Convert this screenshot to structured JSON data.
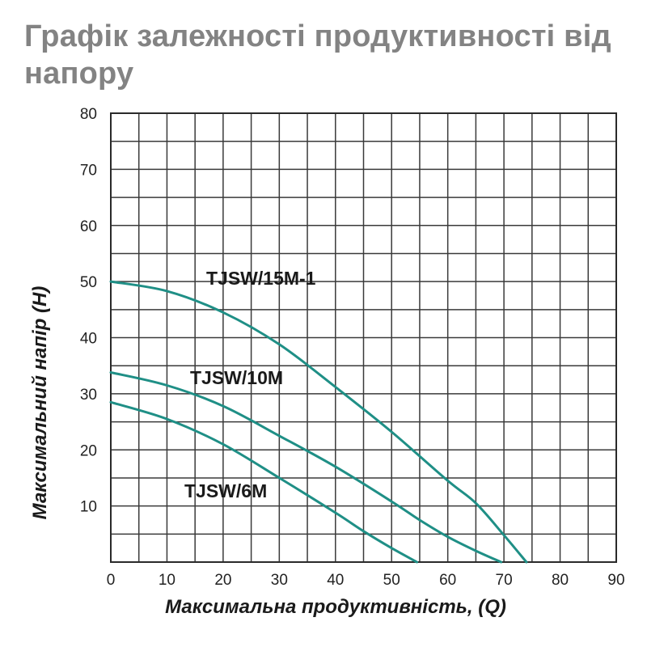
{
  "chart_data": {
    "type": "line",
    "title": "Графік залежності продуктивності від напору",
    "xlabel": "Максимальна продуктивність, (Q)",
    "ylabel": "Максимальний напір (H)",
    "xlim": [
      0,
      90
    ],
    "ylim": [
      0,
      80
    ],
    "x_ticks": [
      "0",
      "10",
      "20",
      "30",
      "40",
      "50",
      "60",
      "70",
      "80",
      "90"
    ],
    "y_ticks": [
      "10",
      "20",
      "30",
      "40",
      "50",
      "60",
      "70",
      "80"
    ],
    "grid": true,
    "minor_grid_step": 5,
    "line_color": "#1f8f86",
    "series": [
      {
        "name": "TJSW/15M-1",
        "x": [
          0,
          10,
          20,
          30,
          40,
          50,
          60,
          65,
          70,
          74
        ],
        "y": [
          50,
          48.3,
          44.5,
          38.8,
          31.2,
          23.2,
          14.5,
          10.5,
          4.8,
          0
        ]
      },
      {
        "name": "TJSW/10M",
        "x": [
          0,
          10,
          20,
          30,
          40,
          50,
          55,
          60,
          65,
          69.5
        ],
        "y": [
          33.8,
          31.5,
          27.8,
          22.5,
          17,
          10.8,
          7.5,
          4.5,
          2,
          0
        ]
      },
      {
        "name": "TJSW/6M",
        "x": [
          0,
          10,
          20,
          30,
          40,
          45,
          50,
          54.5
        ],
        "y": [
          28.5,
          25.5,
          21,
          15,
          8.8,
          5.5,
          2.5,
          0
        ]
      }
    ]
  }
}
